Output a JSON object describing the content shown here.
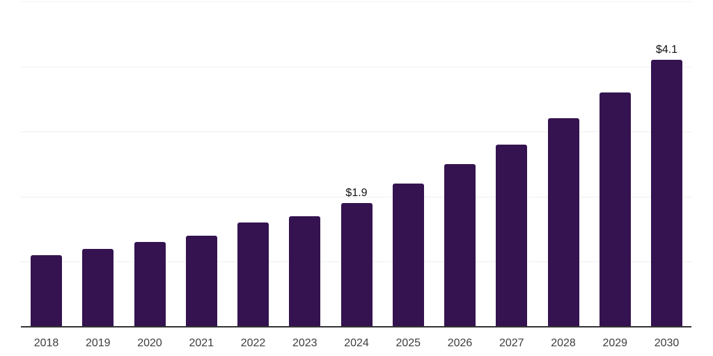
{
  "chart_data": {
    "type": "bar",
    "title": "",
    "xlabel": "",
    "ylabel": "",
    "categories": [
      "2018",
      "2019",
      "2020",
      "2021",
      "2022",
      "2023",
      "2024",
      "2025",
      "2026",
      "2027",
      "2028",
      "2029",
      "2030"
    ],
    "values": [
      1.1,
      1.2,
      1.3,
      1.4,
      1.6,
      1.7,
      1.9,
      2.2,
      2.5,
      2.8,
      3.2,
      3.6,
      4.1
    ],
    "value_labels": [
      {
        "category": "2024",
        "text": "$1.9"
      },
      {
        "category": "2030",
        "text": "$4.1"
      }
    ],
    "ylim": [
      0,
      5
    ],
    "gridline_values": [
      1,
      2,
      3,
      4,
      5
    ],
    "grid": "horizontal",
    "legend": "none",
    "y_tick_labels_shown": false,
    "colors": {
      "bar": "#341350",
      "gridline": "#f0f0f0",
      "axis_line": "#333333",
      "tick_label": "#3d3d3d",
      "value_label": "#111111",
      "background": "#ffffff"
    }
  }
}
